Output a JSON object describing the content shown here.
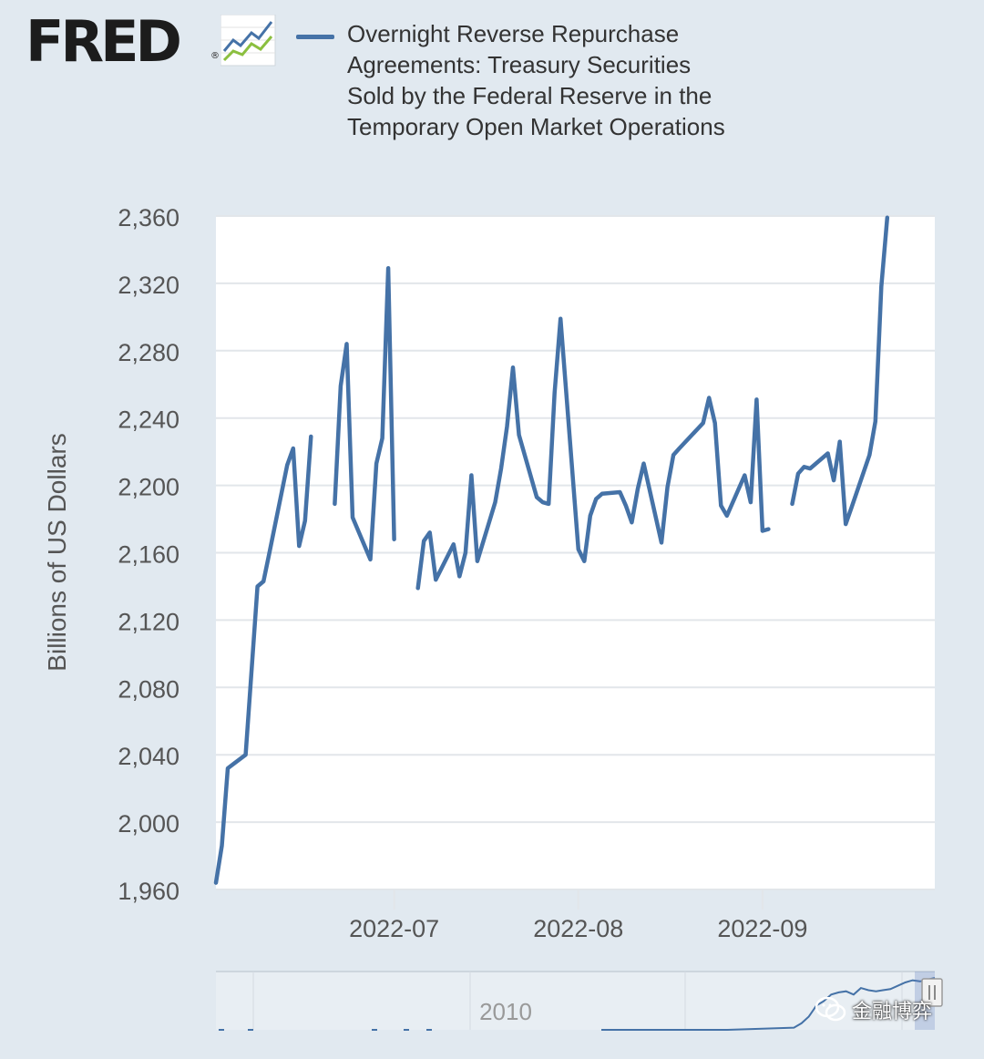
{
  "brand": {
    "name": "FRED",
    "registered": "®"
  },
  "colors": {
    "series": "#4572a7",
    "background": "#e1e9f0",
    "plot": "#ffffff",
    "grid": "#e2e6ea",
    "axis_text": "#555555",
    "navigator_text": "#999999"
  },
  "watermark": {
    "text": "金融博弈"
  },
  "chart_data": {
    "type": "line",
    "title": "Overnight Reverse Repurchase Agreements: Treasury Securities Sold by the Federal Reserve in the Temporary Open Market Operations",
    "legend": [
      "Overnight Reverse Repurchase Agreements: Treasury Securities Sold by the Federal Reserve in the Temporary Open Market Operations"
    ],
    "ylabel": "Billions of US Dollars",
    "xlabel": "",
    "ylim": [
      1960,
      2360
    ],
    "yticks": [
      1960,
      2000,
      2040,
      2080,
      2120,
      2160,
      2200,
      2240,
      2280,
      2320,
      2360
    ],
    "ytick_labels": [
      "1,960",
      "2,000",
      "2,040",
      "2,080",
      "2,120",
      "2,160",
      "2,200",
      "2,240",
      "2,280",
      "2,320",
      "2,360"
    ],
    "xlim": [
      "2022-06-01",
      "2022-09-30"
    ],
    "xticks": [
      {
        "date": "2022-07-01",
        "label": "2022-07"
      },
      {
        "date": "2022-08-01",
        "label": "2022-08"
      },
      {
        "date": "2022-09-01",
        "label": "2022-09"
      }
    ],
    "series": [
      {
        "name": "Overnight Reverse Repurchase Agreements",
        "segments": [
          [
            [
              "2022-06-01",
              1964
            ],
            [
              "2022-06-02",
              1986
            ],
            [
              "2022-06-03",
              2032
            ],
            [
              "2022-06-06",
              2040
            ],
            [
              "2022-06-07",
              2090
            ],
            [
              "2022-06-08",
              2140
            ],
            [
              "2022-06-09",
              2143
            ],
            [
              "2022-06-10",
              2160
            ],
            [
              "2022-06-13",
              2212
            ],
            [
              "2022-06-14",
              2222
            ],
            [
              "2022-06-15",
              2164
            ],
            [
              "2022-06-16",
              2179
            ],
            [
              "2022-06-17",
              2229
            ]
          ],
          [
            [
              "2022-06-21",
              2189
            ],
            [
              "2022-06-22",
              2259
            ],
            [
              "2022-06-23",
              2284
            ],
            [
              "2022-06-24",
              2181
            ],
            [
              "2022-06-27",
              2156
            ],
            [
              "2022-06-28",
              2213
            ],
            [
              "2022-06-29",
              2228
            ],
            [
              "2022-06-30",
              2329
            ],
            [
              "2022-07-01",
              2168
            ]
          ],
          [
            [
              "2022-07-05",
              2139
            ],
            [
              "2022-07-06",
              2167
            ],
            [
              "2022-07-07",
              2172
            ],
            [
              "2022-07-08",
              2144
            ],
            [
              "2022-07-11",
              2165
            ],
            [
              "2022-07-12",
              2146
            ],
            [
              "2022-07-13",
              2160
            ],
            [
              "2022-07-14",
              2206
            ],
            [
              "2022-07-15",
              2155
            ],
            [
              "2022-07-18",
              2190
            ],
            [
              "2022-07-19",
              2210
            ],
            [
              "2022-07-20",
              2235
            ],
            [
              "2022-07-21",
              2270
            ],
            [
              "2022-07-22",
              2230
            ],
            [
              "2022-07-25",
              2193
            ],
            [
              "2022-07-26",
              2190
            ],
            [
              "2022-07-27",
              2189
            ],
            [
              "2022-07-28",
              2255
            ],
            [
              "2022-07-29",
              2299
            ],
            [
              "2022-08-01",
              2162
            ],
            [
              "2022-08-02",
              2155
            ],
            [
              "2022-08-03",
              2182
            ],
            [
              "2022-08-04",
              2192
            ],
            [
              "2022-08-05",
              2195
            ],
            [
              "2022-08-08",
              2196
            ],
            [
              "2022-08-09",
              2188
            ],
            [
              "2022-08-10",
              2178
            ],
            [
              "2022-08-11",
              2198
            ],
            [
              "2022-08-12",
              2213
            ],
            [
              "2022-08-15",
              2166
            ],
            [
              "2022-08-16",
              2199
            ],
            [
              "2022-08-17",
              2218
            ],
            [
              "2022-08-18",
              2222
            ],
            [
              "2022-08-22",
              2237
            ],
            [
              "2022-08-23",
              2252
            ],
            [
              "2022-08-24",
              2237
            ],
            [
              "2022-08-25",
              2188
            ],
            [
              "2022-08-26",
              2182
            ],
            [
              "2022-08-29",
              2206
            ],
            [
              "2022-08-30",
              2190
            ],
            [
              "2022-08-31",
              2251
            ],
            [
              "2022-09-01",
              2173
            ],
            [
              "2022-09-02",
              2174
            ]
          ],
          [
            [
              "2022-09-06",
              2189
            ],
            [
              "2022-09-07",
              2207
            ],
            [
              "2022-09-08",
              2211
            ],
            [
              "2022-09-09",
              2210
            ],
            [
              "2022-09-12",
              2219
            ],
            [
              "2022-09-13",
              2203
            ],
            [
              "2022-09-14",
              2226
            ],
            [
              "2022-09-15",
              2177
            ],
            [
              "2022-09-16",
              2187
            ],
            [
              "2022-09-19",
              2218
            ],
            [
              "2022-09-20",
              2238
            ],
            [
              "2022-09-21",
              2318
            ],
            [
              "2022-09-22",
              2359
            ]
          ]
        ]
      }
    ],
    "navigator": {
      "label": "2010",
      "series": [
        [
          "2019-01-01",
          0
        ],
        [
          "2020-06-01",
          0
        ],
        [
          "2021-03-01",
          0.1
        ],
        [
          "2021-04-01",
          0.3
        ],
        [
          "2021-05-01",
          0.6
        ],
        [
          "2021-06-01",
          1.1
        ],
        [
          "2021-07-01",
          1.3
        ],
        [
          "2021-08-01",
          1.6
        ],
        [
          "2021-09-01",
          1.7
        ],
        [
          "2021-10-01",
          1.75
        ],
        [
          "2021-11-01",
          1.6
        ],
        [
          "2021-12-01",
          1.9
        ],
        [
          "2022-01-01",
          1.8
        ],
        [
          "2022-02-01",
          1.75
        ],
        [
          "2022-03-01",
          1.8
        ],
        [
          "2022-04-01",
          1.85
        ],
        [
          "2022-05-01",
          2.0
        ],
        [
          "2022-06-01",
          2.15
        ],
        [
          "2022-07-01",
          2.25
        ],
        [
          "2022-08-01",
          2.2
        ],
        [
          "2022-09-30",
          2.36
        ]
      ]
    }
  }
}
